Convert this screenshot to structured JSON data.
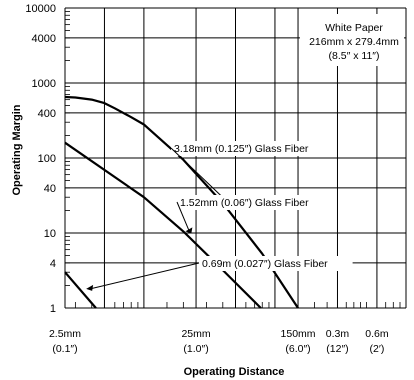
{
  "chart_data": {
    "type": "line",
    "xlabel": "Operating Distance",
    "ylabel": "Operating Margin",
    "xscale": "log",
    "yscale": "log",
    "grid": true,
    "xlim_mm": [
      2.5,
      1000
    ],
    "ylim": [
      1,
      10000
    ],
    "y_tick_labels": [
      "10000",
      "4000",
      "1000",
      "400",
      "100",
      "40",
      "10",
      "4",
      "1"
    ],
    "y_tick_values": [
      10000,
      4000,
      1000,
      400,
      100,
      40,
      10,
      4,
      1
    ],
    "x_tick_labels": [
      {
        "top": "2.5mm",
        "bottom": "(0.1″)",
        "value_mm": 2.5
      },
      {
        "top": "25mm",
        "bottom": "(1.0″)",
        "value_mm": 25
      },
      {
        "top": "150mm",
        "bottom": "(6.0″)",
        "value_mm": 150
      },
      {
        "top": "0.3m",
        "bottom": "(12″)",
        "value_mm": 300
      },
      {
        "top": "0.6m",
        "bottom": "(2′)",
        "value_mm": 600
      }
    ],
    "note": {
      "line1": "White Paper",
      "line2": "216mm x 279.4mm",
      "line3": "(8.5″ x 11″)"
    },
    "series": [
      {
        "name": "3.18mm (0.125″) Glass Fiber",
        "x_mm": [
          2.5,
          3,
          4,
          5,
          6,
          8,
          10,
          20,
          40,
          80,
          150
        ],
        "y": [
          650,
          640,
          600,
          540,
          460,
          350,
          280,
          95,
          25,
          5.3,
          1
        ]
      },
      {
        "name": "1.52mm (0.06″) Glass Fiber",
        "x_mm": [
          2.5,
          10,
          20,
          40,
          78
        ],
        "y": [
          160,
          30,
          10.5,
          3.2,
          1
        ]
      },
      {
        "name": "0.69m (0.027″) Glass Fiber",
        "x_mm": [
          2.5,
          4.3
        ],
        "y": [
          3,
          1
        ]
      }
    ]
  }
}
